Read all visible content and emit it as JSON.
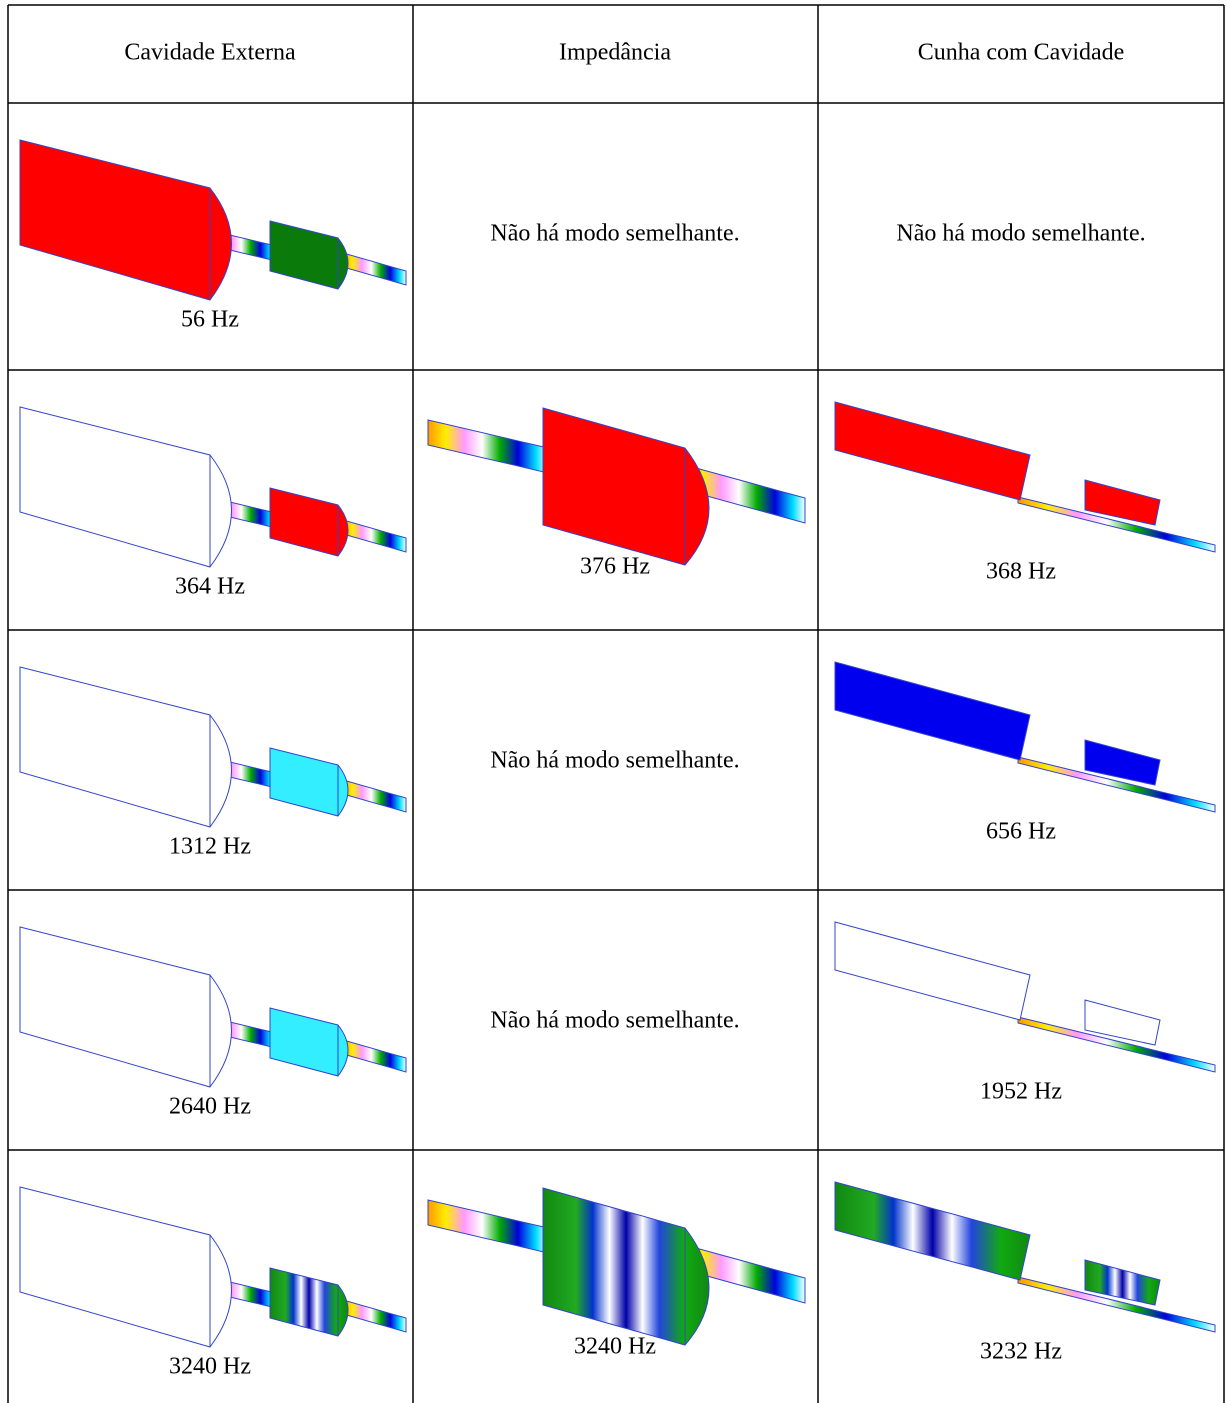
{
  "table": {
    "header": [
      "Cavidade Externa",
      "Impedância",
      "Cunha com Cavidade"
    ],
    "rows": [
      [
        "56 Hz",
        "Não há modo semelhante.",
        "Não há modo semelhante."
      ],
      [
        "364 Hz",
        "376 Hz",
        "368 Hz"
      ],
      [
        "1312 Hz",
        "Não há modo semelhante.",
        "656 Hz"
      ],
      [
        "2640 Hz",
        "Não há modo semelhante.",
        "1952 Hz"
      ],
      [
        "3240 Hz",
        "3240 Hz",
        "3232 Hz"
      ]
    ]
  }
}
